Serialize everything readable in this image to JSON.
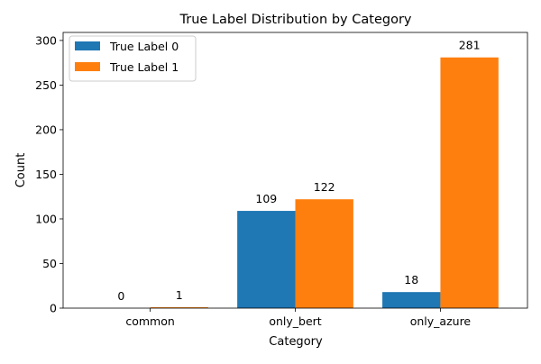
{
  "chart_data": {
    "type": "bar",
    "title": "True Label Distribution by Category",
    "xlabel": "Category",
    "ylabel": "Count",
    "categories": [
      "common",
      "only_bert",
      "only_azure"
    ],
    "series": [
      {
        "name": "True Label 0",
        "color": "#1f77b4",
        "values": [
          0,
          109,
          18
        ]
      },
      {
        "name": "True Label 1",
        "color": "#ff7f0e",
        "values": [
          1,
          122,
          281
        ]
      }
    ],
    "ylim": [
      0,
      309
    ],
    "yticks": [
      0,
      50,
      100,
      150,
      200,
      250,
      300
    ],
    "grid": false,
    "legend_position": "top-left",
    "data_labels": true
  }
}
